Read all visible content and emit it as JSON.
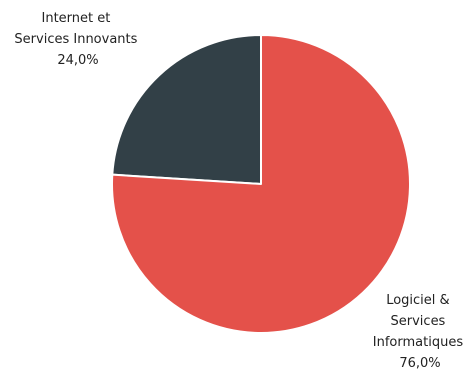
{
  "chart_data": {
    "type": "pie",
    "title": "",
    "slices": [
      {
        "label_lines": [
          "Internet et",
          "Services Innovants"
        ],
        "value_text": "24,0%",
        "value": 24.0,
        "color": "#324047"
      },
      {
        "label_lines": [
          "Logiciel &",
          "Services",
          "Informatiques"
        ],
        "value_text": "76,0%",
        "value": 76.0,
        "color": "#e4514a"
      }
    ],
    "start_angle": "12 o'clock",
    "direction": "counter-clockwise",
    "legend": "none"
  }
}
